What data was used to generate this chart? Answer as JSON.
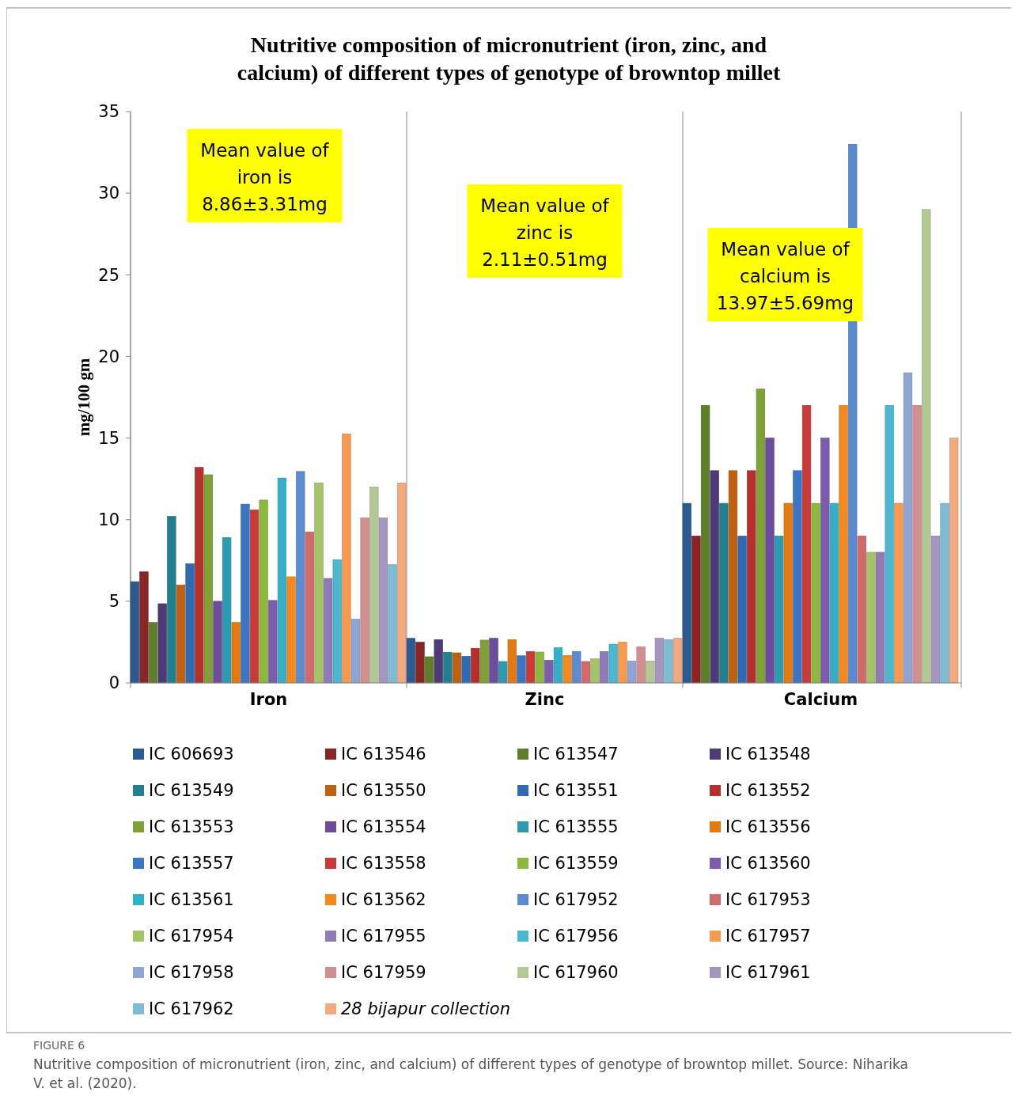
{
  "chart_data": {
    "type": "bar",
    "title": "Nutritive composition of micronutrient (iron, zinc, and calcium) of different types of genotype of browntop millet",
    "ylabel": "mg/100 gm",
    "categories": [
      "Iron",
      "Zinc",
      "Calcium"
    ],
    "ylim": [
      0,
      35
    ],
    "yticks": [
      0,
      5,
      10,
      15,
      20,
      25,
      30,
      35
    ],
    "grid": false,
    "legend": "bottom",
    "annotations": [
      "Mean value of iron is 8.86±3.31mg",
      "Mean value of zinc is 2.11±0.51mg",
      "Mean value of calcium is 13.97±5.69mg",
      "FIGURE 6",
      "Nutritive composition of micronutrient (iron, zinc, and calcium) of different types of genotype of browntop millet. Source: Niharika V. et al. (2020)."
    ],
    "series": [
      {
        "name": "IC 606693",
        "color": "#2a5a8f",
        "values": [
          6.2,
          2.73,
          11
        ]
      },
      {
        "name": "IC 613546",
        "color": "#8b2424",
        "values": [
          6.8,
          2.49,
          9
        ]
      },
      {
        "name": "IC 613547",
        "color": "#5e7f2a",
        "values": [
          3.7,
          1.6,
          17
        ]
      },
      {
        "name": "IC 613548",
        "color": "#4f3a78",
        "values": [
          4.85,
          2.65,
          13
        ]
      },
      {
        "name": "IC 613549",
        "color": "#21808f",
        "values": [
          10.2,
          1.88,
          11
        ]
      },
      {
        "name": "IC 613550",
        "color": "#c0600f",
        "values": [
          6.0,
          1.84,
          13
        ]
      },
      {
        "name": "IC 613551",
        "color": "#2f6bb5",
        "values": [
          7.3,
          1.63,
          9
        ]
      },
      {
        "name": "IC 613552",
        "color": "#b52f2d",
        "values": [
          13.2,
          2.12,
          13
        ]
      },
      {
        "name": "IC 613553",
        "color": "#7fa135",
        "values": [
          12.75,
          2.62,
          18
        ]
      },
      {
        "name": "IC 613554",
        "color": "#6c4c9b",
        "values": [
          5.0,
          2.73,
          15
        ]
      },
      {
        "name": "IC 613555",
        "color": "#2a9bb0",
        "values": [
          8.9,
          1.31,
          9
        ]
      },
      {
        "name": "IC 613556",
        "color": "#e57910",
        "values": [
          3.7,
          2.65,
          11
        ]
      },
      {
        "name": "IC 613557",
        "color": "#3a76c4",
        "values": [
          10.95,
          1.66,
          13
        ]
      },
      {
        "name": "IC 613558",
        "color": "#cc3a38",
        "values": [
          10.6,
          1.92,
          17
        ]
      },
      {
        "name": "IC 613559",
        "color": "#8db83e",
        "values": [
          11.2,
          1.89,
          11
        ]
      },
      {
        "name": "IC 613560",
        "color": "#7d5bae",
        "values": [
          5.05,
          1.39,
          15
        ]
      },
      {
        "name": "IC 613561",
        "color": "#34afc8",
        "values": [
          12.55,
          2.15,
          11
        ]
      },
      {
        "name": "IC 613562",
        "color": "#f48a1e",
        "values": [
          6.5,
          1.68,
          17
        ]
      },
      {
        "name": "IC 617952",
        "color": "#5a8ad0",
        "values": [
          12.95,
          1.92,
          33
        ]
      },
      {
        "name": "IC 617953",
        "color": "#d16a6a",
        "values": [
          9.25,
          1.31,
          9
        ]
      },
      {
        "name": "IC 617954",
        "color": "#a5c46a",
        "values": [
          12.25,
          1.47,
          8
        ]
      },
      {
        "name": "IC 617955",
        "color": "#9279b8",
        "values": [
          6.4,
          1.92,
          8
        ]
      },
      {
        "name": "IC 617956",
        "color": "#4ab8d0",
        "values": [
          7.55,
          2.37,
          17
        ]
      },
      {
        "name": "IC 617957",
        "color": "#f79a50",
        "values": [
          15.25,
          2.49,
          11
        ]
      },
      {
        "name": "IC 617958",
        "color": "#8fa5d5",
        "values": [
          3.9,
          1.34,
          19
        ]
      },
      {
        "name": "IC 617959",
        "color": "#d28f8f",
        "values": [
          10.1,
          2.21,
          17
        ]
      },
      {
        "name": "IC 617960",
        "color": "#b4c896",
        "values": [
          12.0,
          1.34,
          29
        ]
      },
      {
        "name": "IC 617961",
        "color": "#a596c0",
        "values": [
          10.1,
          2.73,
          9
        ]
      },
      {
        "name": "IC 617962",
        "color": "#7cbcd4",
        "values": [
          7.25,
          2.65,
          11
        ]
      },
      {
        "name": "28 bijapur collection",
        "color": "#f4a97f",
        "values": [
          12.25,
          2.73,
          15
        ]
      }
    ]
  }
}
